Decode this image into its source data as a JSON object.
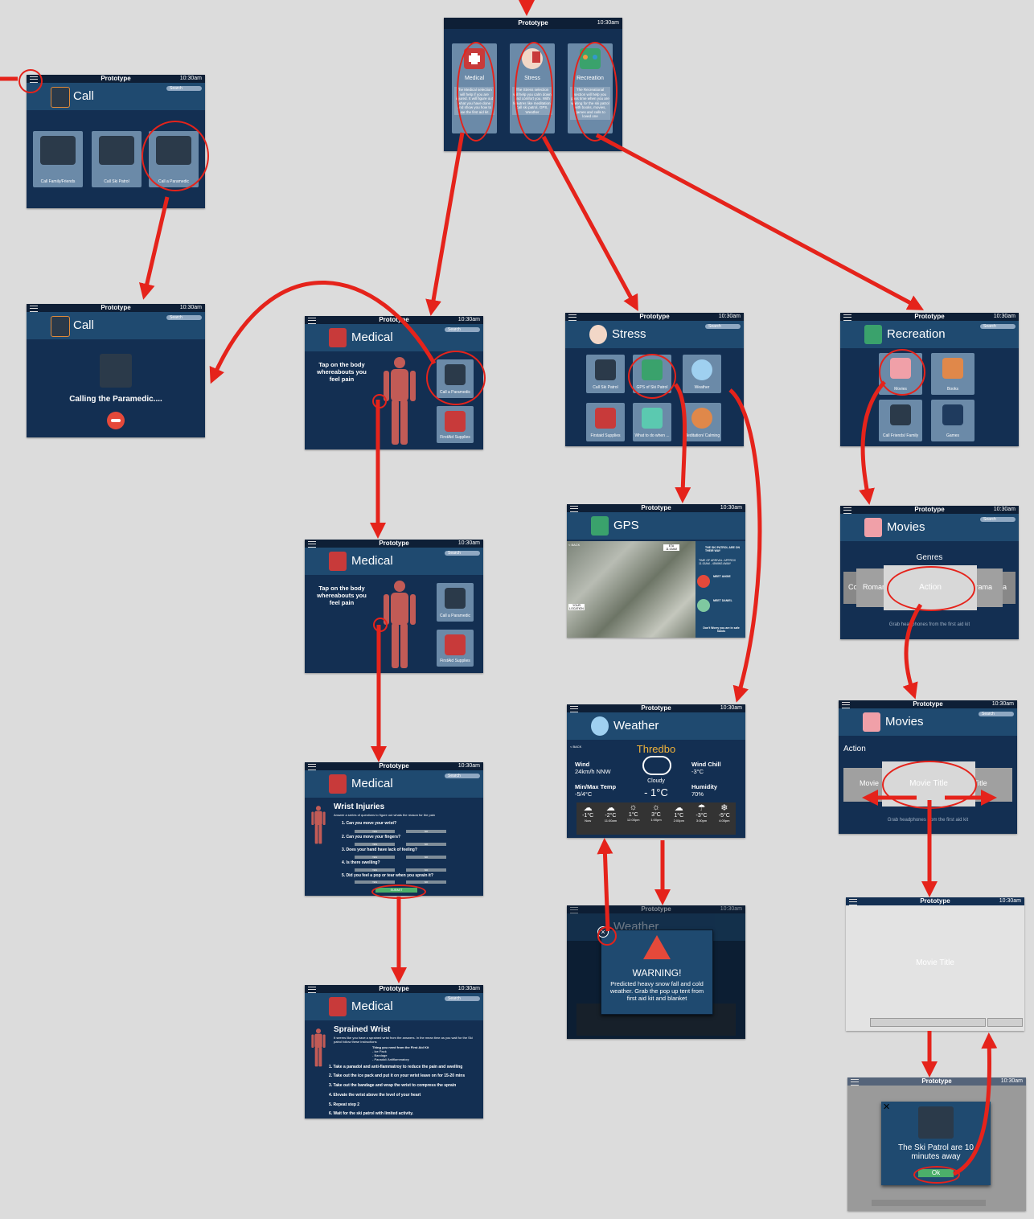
{
  "colors": {
    "screen_bg": "#132f52",
    "header_bg": "#1f4a70",
    "arrow": "#e5231b",
    "tile": "#6b8aa8",
    "body": "#c25b56"
  },
  "common": {
    "app_title": "Prototype",
    "time": "10:30am",
    "search": "Search",
    "back": "< BACK"
  },
  "home": {
    "tiles": [
      {
        "label": "Medical",
        "desc": "The Medical selection will help if you are injured. It will figure out what you have done and show you how to use the first aid kit."
      },
      {
        "label": "Stress",
        "desc": "The Stress selection will help you calm down and comfort you. With feautres like meditation, call ski patrol, GPS, Weather"
      },
      {
        "label": "Recreation",
        "desc": "The Recreational section will help you pass time when you are waiting for the ski patrol with books, movies, games and calls to loved one"
      }
    ]
  },
  "call": {
    "title": "Call",
    "tiles": [
      "Call Family/Friends",
      "Call Ski Patrol",
      "Call a Paramedic"
    ]
  },
  "calling": {
    "title": "Call",
    "text": "Calling the Paramedic...."
  },
  "medical1": {
    "title": "Medical",
    "instr": "Tap on the body whereabouts you feel pain",
    "tiles": [
      "Call a Paramedic",
      "FirstAid Supplies"
    ]
  },
  "medical2": {
    "title": "Medical",
    "instr": "Tap on the body whereabouts you feel pain",
    "tiles": [
      "Call a Paramedic",
      "FirstAid Supplies"
    ]
  },
  "wrist": {
    "title": "Medical",
    "heading": "Wrist Injuries",
    "sub": "Answer a series of questions to figure out whats the reason for the pain",
    "questions": [
      "1. Can you move your wrist?",
      "2. Can you move your fingers?",
      "3. Does your hand have lack of feeling?",
      "4. Is there swelling?",
      "5. Did you feel a pop or tear when you sprain it?"
    ],
    "yes": "YES",
    "no": "NO",
    "submit": "SUBMIT"
  },
  "sprained": {
    "title": "Medical",
    "heading": "Sprained Wrist",
    "sub": "It seems like you have a sprained wrist from the answers. In the mean time as you wait for the Ski patrol follow these instructions",
    "kit_title": "Thing you need from the First Aid Kit",
    "kit": [
      "- Ice Pack",
      "- Bandage",
      "- Panadol/ Antiflammatory"
    ],
    "steps": [
      "1. Take a panadol and anti-flammatroy to reduce the pain and swelling",
      "2. Take out the ice pack and put it on your wrist leave on for 15-20 mins",
      "3. Take out the bandage and wrap the wrist to compress the sprain",
      "4. Elevate the wrist above the level of your heart",
      "5. Repeat step 2",
      "6. Wait for the ski patrol with limited activity."
    ]
  },
  "stress": {
    "title": "Stress",
    "tiles": [
      "Call Ski Patrol",
      "GPS of Ski Patrol",
      "Weather",
      "Firstaid Supplies",
      "What to do when ...",
      "Meditation/ Calming"
    ]
  },
  "gps": {
    "title": "GPS",
    "eta": "ETA 11:15AM",
    "you": "YOUR LOCATION",
    "info": [
      "THE SKI PATROL ARE ON THEIR WAY",
      "TIME OF ARRIVAL: APPROX 11:15AM - 45MINS AWAY",
      "MEET ANGIE",
      "MEET DANIEL",
      "Don't Worry you are in safe hands"
    ]
  },
  "weather": {
    "title": "Weather",
    "city": "Thredbo",
    "wind_l": "Wind",
    "wind_v": "24km/h NNW",
    "chill_l": "Wind Chill",
    "chill_v": "-3°C",
    "minmax_l": "Min/Max Temp",
    "minmax_v": "-5/4°C",
    "hum_l": "Humidity",
    "hum_v": "70%",
    "cond": "Cloudy",
    "temp": "- 1°C",
    "forecast": [
      {
        "t": "-1°C",
        "h": "Now"
      },
      {
        "t": "-2°C",
        "h": "11:00am"
      },
      {
        "t": "1°C",
        "h": "12:00pm"
      },
      {
        "t": "3°C",
        "h": "1:00pm"
      },
      {
        "t": "1°C",
        "h": "2:00pm"
      },
      {
        "t": "-3°C",
        "h": "3:00pm"
      },
      {
        "t": "-5°C",
        "h": "4:00pm"
      }
    ]
  },
  "warning": {
    "title": "WARNING!",
    "text": "Predicted heavy snow fall and cold weather. Grab the pop up tent from first aid kit and blanket",
    "bg_title": "Weather"
  },
  "recreation": {
    "title": "Recreation",
    "tiles": [
      "Movies",
      "Books",
      "Call Friends/ Family",
      "Games"
    ]
  },
  "movies1": {
    "title": "Movies",
    "genres": "Genres",
    "cards": [
      "Comedy",
      "Romance",
      "Action",
      "Drama"
    ],
    "hint": "Grab headphones from the first aid kit"
  },
  "movies2": {
    "title": "Movies",
    "genre": "Action",
    "cards": [
      "Movie",
      "Movie Title",
      "Title"
    ],
    "hint": "Grab headphones from the first aid kit"
  },
  "player": {
    "title": "Movie Title"
  },
  "popup": {
    "text": "The Ski Patrol are 10 minutes away",
    "ok": "Ok"
  }
}
